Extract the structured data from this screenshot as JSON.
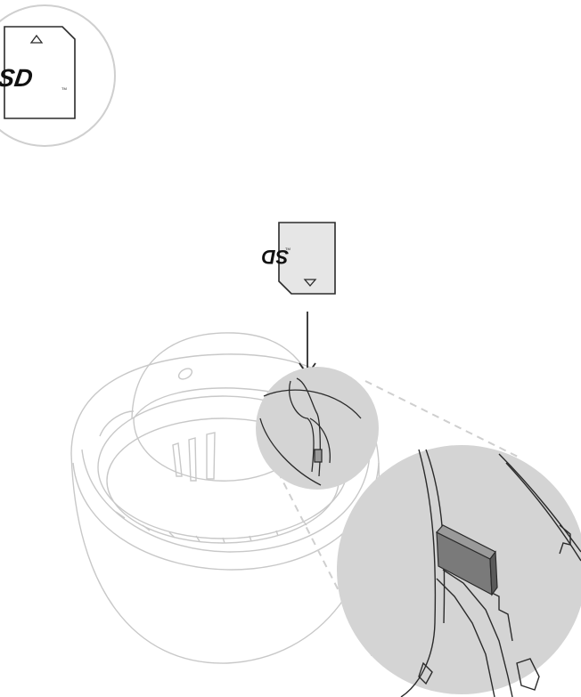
{
  "sd_card_reference": {
    "logo_text": "SD",
    "trademark": "TM"
  },
  "sd_card_insert": {
    "logo_text": "SD",
    "trademark": "TM"
  },
  "colors": {
    "line": "#2b2b2b",
    "card_fill": "#e6e6e6",
    "zoom_fill": "#d4d4d4",
    "ghost_line": "#c8c8c8",
    "dashed_guide": "#cfcfcf",
    "slot_card": "#7a7a7a"
  }
}
